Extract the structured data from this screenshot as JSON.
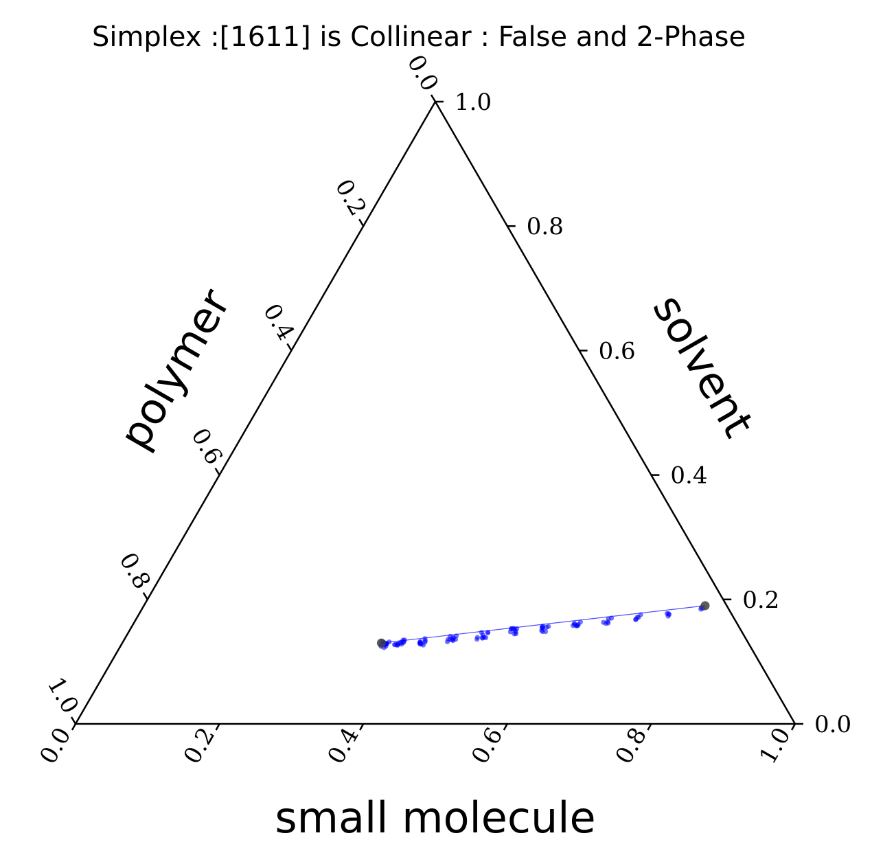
{
  "chart_data": {
    "type": "scatter",
    "subtype": "ternary",
    "title": "Simplex :[1611] is Collinear : False and 2-Phase",
    "axes": {
      "bottom": {
        "label": "small molecule",
        "ticks": [
          "0.0",
          "0.2",
          "0.4",
          "0.6",
          "0.8",
          "1.0"
        ]
      },
      "left": {
        "label": "polymer",
        "ticks": [
          "0.0",
          "0.2",
          "0.4",
          "0.6",
          "0.8",
          "1.0"
        ]
      },
      "right": {
        "label": "solvent",
        "ticks": [
          "0.0",
          "0.2",
          "0.4",
          "0.6",
          "0.8",
          "1.0"
        ]
      }
    },
    "range": [
      0,
      1
    ],
    "colors": {
      "points": "#0000ff",
      "vertices": "#404040",
      "axes": "#000000"
    },
    "tie_line": {
      "start": {
        "small_molecule": 0.36,
        "solvent": 0.13
      },
      "end": {
        "small_molecule": 0.78,
        "solvent": 0.19
      }
    },
    "vertices": [
      {
        "small_molecule": 0.36,
        "solvent": 0.13
      },
      {
        "small_molecule": 0.78,
        "solvent": 0.19
      }
    ],
    "point_clusters": [
      {
        "small_molecule": 0.365,
        "solvent": 0.128,
        "count": 12,
        "spread": 0.006
      },
      {
        "small_molecule": 0.385,
        "solvent": 0.13,
        "count": 12,
        "spread": 0.006
      },
      {
        "small_molecule": 0.415,
        "solvent": 0.132,
        "count": 10,
        "spread": 0.006
      },
      {
        "small_molecule": 0.455,
        "solvent": 0.137,
        "count": 10,
        "spread": 0.006
      },
      {
        "small_molecule": 0.495,
        "solvent": 0.142,
        "count": 10,
        "spread": 0.006
      },
      {
        "small_molecule": 0.535,
        "solvent": 0.148,
        "count": 10,
        "spread": 0.006
      },
      {
        "small_molecule": 0.575,
        "solvent": 0.153,
        "count": 9,
        "spread": 0.005
      },
      {
        "small_molecule": 0.615,
        "solvent": 0.159,
        "count": 8,
        "spread": 0.005
      },
      {
        "small_molecule": 0.655,
        "solvent": 0.165,
        "count": 6,
        "spread": 0.005
      },
      {
        "small_molecule": 0.695,
        "solvent": 0.171,
        "count": 5,
        "spread": 0.005
      },
      {
        "small_molecule": 0.735,
        "solvent": 0.177,
        "count": 4,
        "spread": 0.004
      },
      {
        "small_molecule": 0.778,
        "solvent": 0.186,
        "count": 3,
        "spread": 0.003
      }
    ],
    "grid": false,
    "legend": "none"
  }
}
